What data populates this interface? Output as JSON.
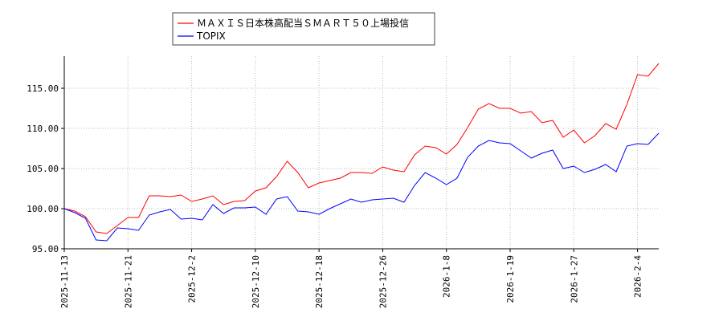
{
  "chart_data": {
    "type": "line",
    "title": "",
    "xlabel": "",
    "ylabel": "",
    "ylim": [
      95,
      119
    ],
    "grid": true,
    "legend_placement": "top-left",
    "yticks": [
      "95.00",
      "100.00",
      "105.00",
      "110.00",
      "115.00"
    ],
    "xticks": [
      "2025-11-13",
      "2025-11-21",
      "2025-12-2",
      "2025-12-10",
      "2025-12-18",
      "2025-12-26",
      "2026-1-8",
      "2026-1-19",
      "2026-1-27",
      "2026-2-4"
    ],
    "xtick_index": [
      0,
      6,
      12,
      18,
      24,
      30,
      36,
      42,
      48,
      54
    ],
    "series": [
      {
        "name": "ＭＡＸＩＳ日本株高配当ＳＭＡＲＴ５０上場投信",
        "color": "#ff0000",
        "values": [
          100.0,
          99.7,
          99.0,
          97.1,
          96.9,
          97.9,
          98.9,
          98.9,
          101.6,
          101.6,
          101.5,
          101.7,
          100.9,
          101.2,
          101.6,
          100.5,
          100.9,
          101.0,
          102.2,
          102.6,
          104.0,
          105.9,
          104.5,
          102.6,
          103.2,
          103.5,
          103.8,
          104.5,
          104.5,
          104.4,
          105.2,
          104.8,
          104.6,
          106.7,
          107.8,
          107.6,
          106.8,
          108.0,
          110.1,
          112.4,
          113.1,
          112.5,
          112.5,
          111.9,
          112.1,
          110.7,
          111.0,
          108.9,
          109.8,
          108.2,
          109.1,
          110.6,
          109.9,
          113.0,
          116.7,
          116.5,
          118.1
        ]
      },
      {
        "name": "TOPIX",
        "color": "#0000ff",
        "values": [
          100.0,
          99.5,
          98.8,
          96.1,
          96.0,
          97.6,
          97.5,
          97.3,
          99.2,
          99.6,
          99.9,
          98.7,
          98.8,
          98.6,
          100.5,
          99.4,
          100.1,
          100.1,
          100.2,
          99.3,
          101.2,
          101.5,
          99.7,
          99.6,
          99.3,
          100.0,
          100.6,
          101.2,
          100.8,
          101.1,
          101.2,
          101.3,
          100.8,
          102.9,
          104.5,
          103.8,
          103.0,
          103.8,
          106.4,
          107.8,
          108.5,
          108.2,
          108.1,
          107.2,
          106.3,
          106.9,
          107.3,
          105.0,
          105.3,
          104.5,
          104.9,
          105.5,
          104.6,
          107.8,
          108.1,
          108.0,
          109.4
        ]
      }
    ]
  }
}
